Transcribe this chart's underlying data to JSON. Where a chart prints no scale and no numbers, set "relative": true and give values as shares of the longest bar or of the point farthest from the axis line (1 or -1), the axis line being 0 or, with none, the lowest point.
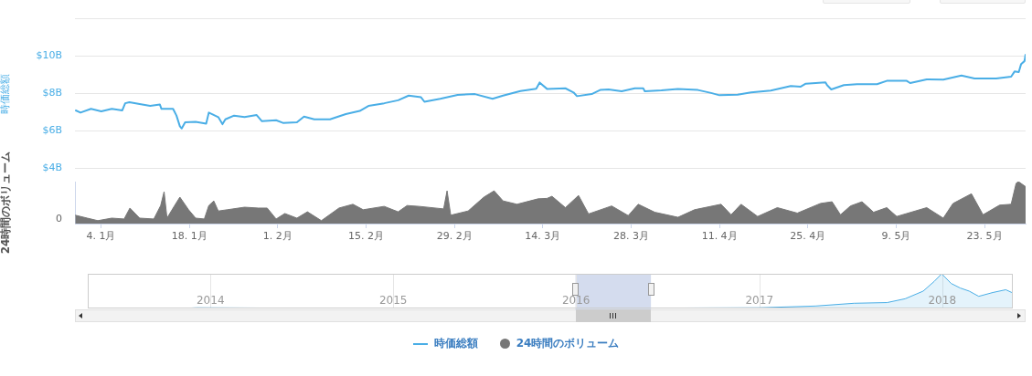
{
  "chart_data": [
    {
      "type": "line",
      "ylabel": "時価総額",
      "xlim": [
        "2015-12-30T21:00",
        "2016-05-29T12:00"
      ],
      "ylim": [
        4,
        12
      ],
      "yticks": [
        {
          "value": 4,
          "label": "$4B"
        },
        {
          "value": 6,
          "label": "$6B"
        },
        {
          "value": 8,
          "label": "$8B"
        },
        {
          "value": 10,
          "label": "$10B"
        },
        {
          "value": 12,
          "label": null
        }
      ],
      "grid": "y",
      "tick_labels": "y",
      "legend": "bottom",
      "series": [
        {
          "name": "時価総額",
          "color": "#4aaee6",
          "x": [
            "2015-12-30T22:00",
            "2015-12-31T18:00",
            "2016-01-02T10:00",
            "2016-01-04T01:00",
            "2016-01-05T17:00",
            "2016-01-07T09:00",
            "2016-01-07T20:00",
            "2016-01-08T12:00",
            "2016-01-10T03:00",
            "2016-01-11T19:00",
            "2016-01-13T08:00",
            "2016-01-13T14:00",
            "2016-01-15T10:00",
            "2016-01-15T23:00",
            "2016-01-16T12:00",
            "2016-01-16T19:00",
            "2016-01-17T08:00",
            "2016-01-19T00:00",
            "2016-01-20T16:00",
            "2016-01-21T02:00",
            "2016-01-22T14:00",
            "2016-01-23T06:00",
            "2016-01-23T17:00",
            "2016-01-25T02:00",
            "2016-01-26T18:00",
            "2016-01-28T16:00",
            "2016-01-29T12:00",
            "2016-01-31T18:00",
            "2016-02-01T20:00",
            "2016-02-04T01:00",
            "2016-02-05T04:00",
            "2016-02-06T19:00",
            "2016-02-09T07:00",
            "2016-02-11T19:00",
            "2016-02-14T00:00",
            "2016-02-15T09:00",
            "2016-02-17T21:00",
            "2016-02-20T02:00",
            "2016-02-21T18:00",
            "2016-02-23T17:00",
            "2016-02-24T06:00",
            "2016-02-26T18:00",
            "2016-02-29T12:00",
            "2016-03-03T06:00",
            "2016-03-06T01:00",
            "2016-03-07T17:00",
            "2016-03-10T11:00",
            "2016-03-12T23:00",
            "2016-03-13T12:00",
            "2016-03-14T16:00",
            "2016-03-17T14:00",
            "2016-03-18T21:00",
            "2016-03-19T10:00",
            "2016-03-21T18:00",
            "2016-03-23T02:00",
            "2016-03-24T10:00",
            "2016-03-26T12:00",
            "2016-03-28T14:00",
            "2016-03-29T22:00",
            "2016-03-30T04:00",
            "2016-04-01T19:00",
            "2016-04-04T10:00",
            "2016-04-07T14:00",
            "2016-04-09T16:00",
            "2016-04-11T00:00",
            "2016-04-13T21:00",
            "2016-04-16T00:00",
            "2016-04-19T03:00",
            "2016-04-22T07:00",
            "2016-04-23T21:00",
            "2016-04-24T16:00",
            "2016-04-27T19:00",
            "2016-04-28T01:00",
            "2016-04-28T17:00",
            "2016-04-30T17:00",
            "2016-05-02T19:00",
            "2016-05-05T23:00",
            "2016-05-07T12:00",
            "2016-05-10T16:00",
            "2016-05-11T05:00",
            "2016-05-13T20:00",
            "2016-05-16T11:00",
            "2016-05-19T08:00",
            "2016-05-21T10:00",
            "2016-05-24T20:00",
            "2016-05-27T05:00",
            "2016-05-27T18:00",
            "2016-05-28T10:00",
            "2016-05-28T19:00",
            "2016-05-29T08:00",
            "2016-05-29T12:00"
          ],
          "values": [
            7.11,
            6.98,
            7.18,
            7.05,
            7.18,
            7.1,
            7.48,
            7.54,
            7.44,
            7.34,
            7.41,
            7.18,
            7.18,
            6.82,
            6.25,
            6.13,
            6.46,
            6.49,
            6.39,
            6.98,
            6.74,
            6.36,
            6.62,
            6.82,
            6.74,
            6.85,
            6.52,
            6.57,
            6.43,
            6.46,
            6.77,
            6.62,
            6.62,
            6.9,
            7.07,
            7.34,
            7.48,
            7.64,
            7.89,
            7.8,
            7.56,
            7.72,
            7.93,
            7.97,
            7.72,
            7.89,
            8.13,
            8.26,
            8.59,
            8.25,
            8.28,
            8.06,
            7.86,
            7.97,
            8.19,
            8.22,
            8.12,
            8.28,
            8.28,
            8.12,
            8.17,
            8.25,
            8.19,
            8.03,
            7.91,
            7.94,
            8.06,
            8.16,
            8.4,
            8.37,
            8.53,
            8.6,
            8.45,
            8.22,
            8.45,
            8.5,
            8.5,
            8.68,
            8.68,
            8.56,
            8.76,
            8.74,
            8.96,
            8.81,
            8.81,
            8.9,
            9.18,
            9.15,
            9.58,
            9.74,
            10.11
          ]
        }
      ]
    },
    {
      "type": "area",
      "ylabel": "24時間のボリューム",
      "relative": true,
      "xlim": [
        "2015-12-30T21:00",
        "2016-05-29T12:00"
      ],
      "xticks": [
        {
          "value": "2016-01-04",
          "label": "4. 1月"
        },
        {
          "value": "2016-01-18",
          "label": "18. 1月"
        },
        {
          "value": "2016-02-01",
          "label": "1. 2月"
        },
        {
          "value": "2016-02-15",
          "label": "15. 2月"
        },
        {
          "value": "2016-02-29",
          "label": "29. 2月"
        },
        {
          "value": "2016-03-14",
          "label": "14. 3月"
        },
        {
          "value": "2016-03-28",
          "label": "28. 3月"
        },
        {
          "value": "2016-04-11",
          "label": "11. 4月"
        },
        {
          "value": "2016-04-25",
          "label": "25. 4月"
        },
        {
          "value": "2016-05-09",
          "label": "9. 5月"
        },
        {
          "value": "2016-05-23",
          "label": "23. 5月"
        }
      ],
      "tick_labels": "x",
      "legend": "bottom",
      "annotations": [
        "0"
      ],
      "series": [
        {
          "name": "24時間のボリューム",
          "color": "#777777",
          "x": [
            "2015-12-30T22:00",
            "2016-01-01T20:00",
            "2016-01-03T12:00",
            "2016-01-05T17:00",
            "2016-01-07T16:00",
            "2016-01-08T14:00",
            "2016-01-10T03:00",
            "2016-01-12T09:00",
            "2016-01-13T11:00",
            "2016-01-14T00:00",
            "2016-01-14T11:00",
            "2016-01-15T16:00",
            "2016-01-16T12:00",
            "2016-01-17T21:00",
            "2016-01-19T00:00",
            "2016-01-20T09:00",
            "2016-01-21T02:00",
            "2016-01-21T21:00",
            "2016-01-22T14:00",
            "2016-01-24T00:00",
            "2016-01-26T18:00",
            "2016-01-28T23:00",
            "2016-01-30T08:00",
            "2016-01-31T18:00",
            "2016-02-02T03:00",
            "2016-02-04T01:00",
            "2016-02-05T17:00",
            "2016-02-07T22:00",
            "2016-02-10T17:00",
            "2016-02-12T22:00",
            "2016-02-14T13:00",
            "2016-02-17T21:00",
            "2016-02-20T02:00",
            "2016-02-21T12:00",
            "2016-02-23T10:00",
            "2016-02-27T07:00",
            "2016-02-27T20:00",
            "2016-02-28T10:00",
            "2016-03-02T04:00",
            "2016-03-04T16:00",
            "2016-03-06T07:00",
            "2016-03-07T17:00",
            "2016-03-09T22:00",
            "2016-03-13T06:00",
            "2016-03-14T16:00",
            "2016-03-15T11:00",
            "2016-03-17T14:00",
            "2016-03-19T16:00",
            "2016-03-21T06:00",
            "2016-03-24T22:00",
            "2016-03-27T13:00",
            "2016-03-29T03:00",
            "2016-03-31T18:00",
            "2016-04-04T10:00",
            "2016-04-07T01:00",
            "2016-04-11T06:00",
            "2016-04-12T20:00",
            "2016-04-14T10:00",
            "2016-04-17T01:00",
            "2016-04-20T04:00",
            "2016-04-23T08:00",
            "2016-04-27T00:00",
            "2016-04-28T20:00",
            "2016-04-30T04:00",
            "2016-05-01T18:00",
            "2016-05-03T14:00",
            "2016-05-05T10:00",
            "2016-05-07T12:00",
            "2016-05-09T02:00",
            "2016-05-13T20:00",
            "2016-05-16T11:00",
            "2016-05-18T00:00",
            "2016-05-20T22:00",
            "2016-05-22T18:00",
            "2016-05-25T09:00",
            "2016-05-27T05:00",
            "2016-05-28T00:00",
            "2016-05-28T09:00",
            "2016-05-29T12:00"
          ],
          "values": [
            0.2,
            0.13,
            0.07,
            0.13,
            0.11,
            0.37,
            0.13,
            0.11,
            0.43,
            0.76,
            0.13,
            0.43,
            0.63,
            0.33,
            0.13,
            0.11,
            0.43,
            0.54,
            0.3,
            0.33,
            0.39,
            0.37,
            0.37,
            0.11,
            0.24,
            0.13,
            0.28,
            0.07,
            0.37,
            0.46,
            0.33,
            0.41,
            0.28,
            0.43,
            0.41,
            0.35,
            0.78,
            0.2,
            0.3,
            0.63,
            0.78,
            0.54,
            0.46,
            0.59,
            0.6,
            0.65,
            0.38,
            0.67,
            0.23,
            0.42,
            0.19,
            0.46,
            0.27,
            0.15,
            0.33,
            0.46,
            0.21,
            0.46,
            0.17,
            0.38,
            0.25,
            0.48,
            0.52,
            0.21,
            0.42,
            0.52,
            0.27,
            0.38,
            0.17,
            0.38,
            0.13,
            0.48,
            0.71,
            0.21,
            0.44,
            0.46,
            0.96,
            1,
            0.88
          ]
        }
      ]
    },
    {
      "type": "area",
      "relative": true,
      "xlim": [
        "2013-05-01",
        "2018-05-22"
      ],
      "xticks": [
        {
          "value": "2014-01-01",
          "label": "2014"
        },
        {
          "value": "2015-01-01",
          "label": "2015"
        },
        {
          "value": "2016-01-01",
          "label": "2016"
        },
        {
          "value": "2017-01-01",
          "label": "2017"
        },
        {
          "value": "2018-01-01",
          "label": "2018"
        }
      ],
      "grid": "x",
      "bands": [
        {
          "axis": "x",
          "from": "2015-12-30T21:00",
          "to": "2016-05-29T12:00",
          "color": "#ccd6eb"
        }
      ],
      "series": [
        {
          "color": "#4aaee6",
          "x": [
            "2013-05-01",
            "2013-11-01",
            "2013-12-05",
            "2014-06-01",
            "2015-01-01",
            "2016-01-01",
            "2016-06-01",
            "2017-01-01",
            "2017-04-23",
            "2017-07-09",
            "2017-09-13",
            "2017-10-19",
            "2017-11-24",
            "2017-12-16",
            "2017-12-31",
            "2018-01-19",
            "2018-02-06",
            "2018-02-24",
            "2018-03-15",
            "2018-04-12",
            "2018-05-08",
            "2018-05-20"
          ],
          "values": [
            0,
            0,
            0.02,
            0.01,
            0,
            0,
            0.01,
            0.02,
            0.07,
            0.15,
            0.17,
            0.28,
            0.5,
            0.78,
            1,
            0.72,
            0.59,
            0.5,
            0.35,
            0.46,
            0.54,
            0.46
          ]
        }
      ]
    }
  ]
}
